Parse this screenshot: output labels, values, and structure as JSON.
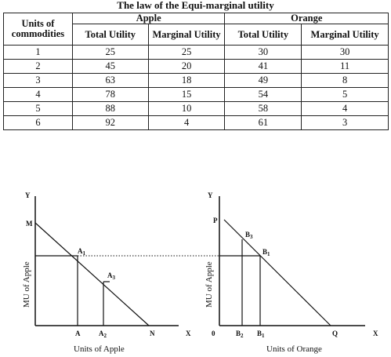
{
  "title": "The law of the Equi-marginal utility",
  "table": {
    "col_units": "Units of commodities",
    "group_apple": "Apple",
    "group_orange": "Orange",
    "col_total_utility": "Total Utility",
    "col_marginal_utility": "Marginal Utility",
    "rows": [
      [
        "1",
        "25",
        "25",
        "30",
        "30"
      ],
      [
        "2",
        "45",
        "20",
        "41",
        "11"
      ],
      [
        "3",
        "63",
        "18",
        "49",
        "8"
      ],
      [
        "4",
        "78",
        "15",
        "54",
        "5"
      ],
      [
        "5",
        "88",
        "10",
        "58",
        "4"
      ],
      [
        "6",
        "92",
        "4",
        "61",
        "3"
      ]
    ]
  },
  "apple_graph": {
    "y_axis": "Y",
    "x_axis": "X",
    "y_title": "MU of Apple",
    "x_title": "Units of Apple",
    "point_m": "M",
    "point_n": "N",
    "point_a1": "A",
    "point_a1_sub": "1",
    "point_a3": "A",
    "point_a3_sub": "3",
    "tick_a": "A",
    "tick_a2": "A",
    "tick_a2_sub": "2"
  },
  "orange_graph": {
    "y_axis": "Y",
    "x_axis": "X",
    "origin": "0",
    "y_title": "MU of Apple",
    "x_title": "Units of Orange",
    "point_p": "P",
    "point_q": "Q",
    "point_b3": "B",
    "point_b3_sub": "3",
    "point_b1": "B",
    "point_b1_sub": "1",
    "tick_b2": "B",
    "tick_b2_sub": "2",
    "tick_b1": "B",
    "tick_b1_sub": "1"
  }
}
